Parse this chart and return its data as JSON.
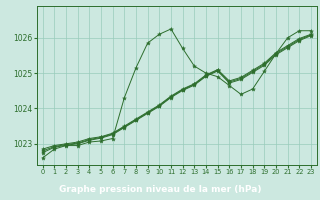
{
  "background_color": "#cce8e0",
  "plot_bg": "#cce8e0",
  "bottom_bar_color": "#3a6e3a",
  "line_color": "#2d6e2d",
  "marker_color": "#2d6e2d",
  "xlabel": "Graphe pression niveau de la mer (hPa)",
  "xlabel_fontsize": 6.5,
  "ylim": [
    1022.4,
    1026.9
  ],
  "xlim": [
    -0.5,
    23.5
  ],
  "yticks": [
    1023,
    1024,
    1025,
    1026
  ],
  "xticks": [
    0,
    1,
    2,
    3,
    4,
    5,
    6,
    7,
    8,
    9,
    10,
    11,
    12,
    13,
    14,
    15,
    16,
    17,
    18,
    19,
    20,
    21,
    22,
    23
  ],
  "series1": [
    1022.6,
    1022.85,
    1022.95,
    1022.95,
    1023.05,
    1023.08,
    1023.15,
    1024.3,
    1025.15,
    1025.85,
    1026.1,
    1026.25,
    1025.7,
    1025.2,
    1025.0,
    1024.9,
    1024.65,
    1024.4,
    1024.55,
    1025.05,
    1025.55,
    1026.0,
    1026.2,
    1026.2
  ],
  "series2": [
    1022.85,
    1022.95,
    1023.0,
    1023.05,
    1023.15,
    1023.2,
    1023.3,
    1023.5,
    1023.7,
    1023.9,
    1024.1,
    1024.35,
    1024.55,
    1024.7,
    1024.95,
    1025.1,
    1024.78,
    1024.88,
    1025.08,
    1025.28,
    1025.58,
    1025.78,
    1025.98,
    1026.1
  ],
  "series3": [
    1022.8,
    1022.92,
    1022.98,
    1023.02,
    1023.12,
    1023.18,
    1023.28,
    1023.48,
    1023.68,
    1023.88,
    1024.08,
    1024.33,
    1024.53,
    1024.68,
    1024.93,
    1025.08,
    1024.75,
    1024.85,
    1025.05,
    1025.25,
    1025.55,
    1025.75,
    1025.95,
    1026.08
  ],
  "series4": [
    1022.75,
    1022.9,
    1022.96,
    1023.0,
    1023.1,
    1023.16,
    1023.26,
    1023.46,
    1023.66,
    1023.86,
    1024.06,
    1024.31,
    1024.51,
    1024.66,
    1024.91,
    1025.06,
    1024.72,
    1024.82,
    1025.02,
    1025.22,
    1025.52,
    1025.72,
    1025.92,
    1026.06
  ]
}
